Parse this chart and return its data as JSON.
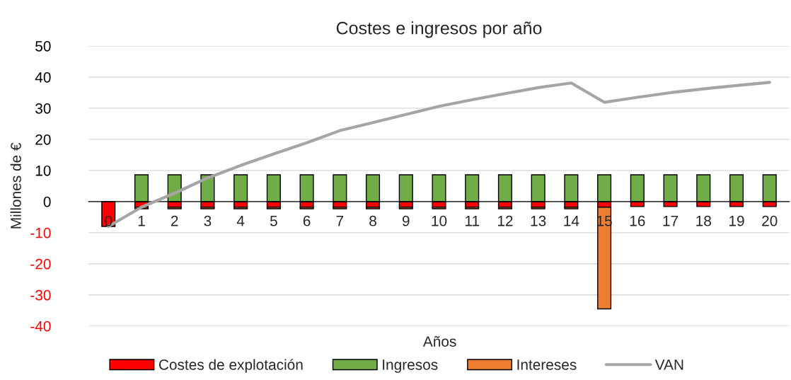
{
  "chart_data": {
    "type": "bar",
    "title": "Costes e ingresos por año",
    "xlabel": "Años",
    "ylabel": "Millones de €",
    "categories": [
      "0",
      "1",
      "2",
      "3",
      "4",
      "5",
      "6",
      "7",
      "8",
      "9",
      "10",
      "11",
      "12",
      "13",
      "14",
      "15",
      "16",
      "17",
      "18",
      "19",
      "20"
    ],
    "stacked": true,
    "series": [
      {
        "name": "Costes de explotación",
        "color": "#ff0000",
        "values": [
          -8,
          -1.8,
          -1.8,
          -1.8,
          -1.8,
          -1.8,
          -1.8,
          -1.8,
          -1.8,
          -1.8,
          -1.8,
          -1.8,
          -1.8,
          -1.8,
          -1.8,
          -1.8,
          -1.6,
          -1.6,
          -1.6,
          -1.6,
          -1.6
        ]
      },
      {
        "name": "Ingresos",
        "color": "#70ad47",
        "values": [
          null,
          8.6,
          8.6,
          8.6,
          8.6,
          8.6,
          8.6,
          8.6,
          8.6,
          8.6,
          8.6,
          8.6,
          8.6,
          8.6,
          8.6,
          8.6,
          8.6,
          8.6,
          8.6,
          8.6,
          8.6
        ]
      },
      {
        "name": "Intereses",
        "color": "#ed7d31",
        "values": [
          null,
          -0.5,
          -0.5,
          -0.5,
          -0.5,
          -0.5,
          -0.5,
          -0.5,
          -0.5,
          -0.5,
          -0.5,
          -0.5,
          -0.5,
          -0.5,
          -0.5,
          -32.7,
          null,
          null,
          null,
          null,
          null
        ]
      },
      {
        "name": "VAN",
        "type": "line",
        "color": "#a5a5a5",
        "values": [
          -8,
          -1.8,
          2.7,
          7.6,
          11.6,
          15.3,
          18.9,
          22.8,
          25.4,
          28.0,
          30.6,
          32.7,
          34.7,
          36.6,
          38.1,
          31.9,
          33.5,
          35.0,
          36.2,
          37.3,
          38.3
        ]
      }
    ],
    "ylim": [
      -40,
      50
    ],
    "yticks": [
      -40,
      -30,
      -20,
      -10,
      0,
      10,
      20,
      30,
      40,
      50
    ],
    "grid": "y",
    "legend": "bottom"
  }
}
